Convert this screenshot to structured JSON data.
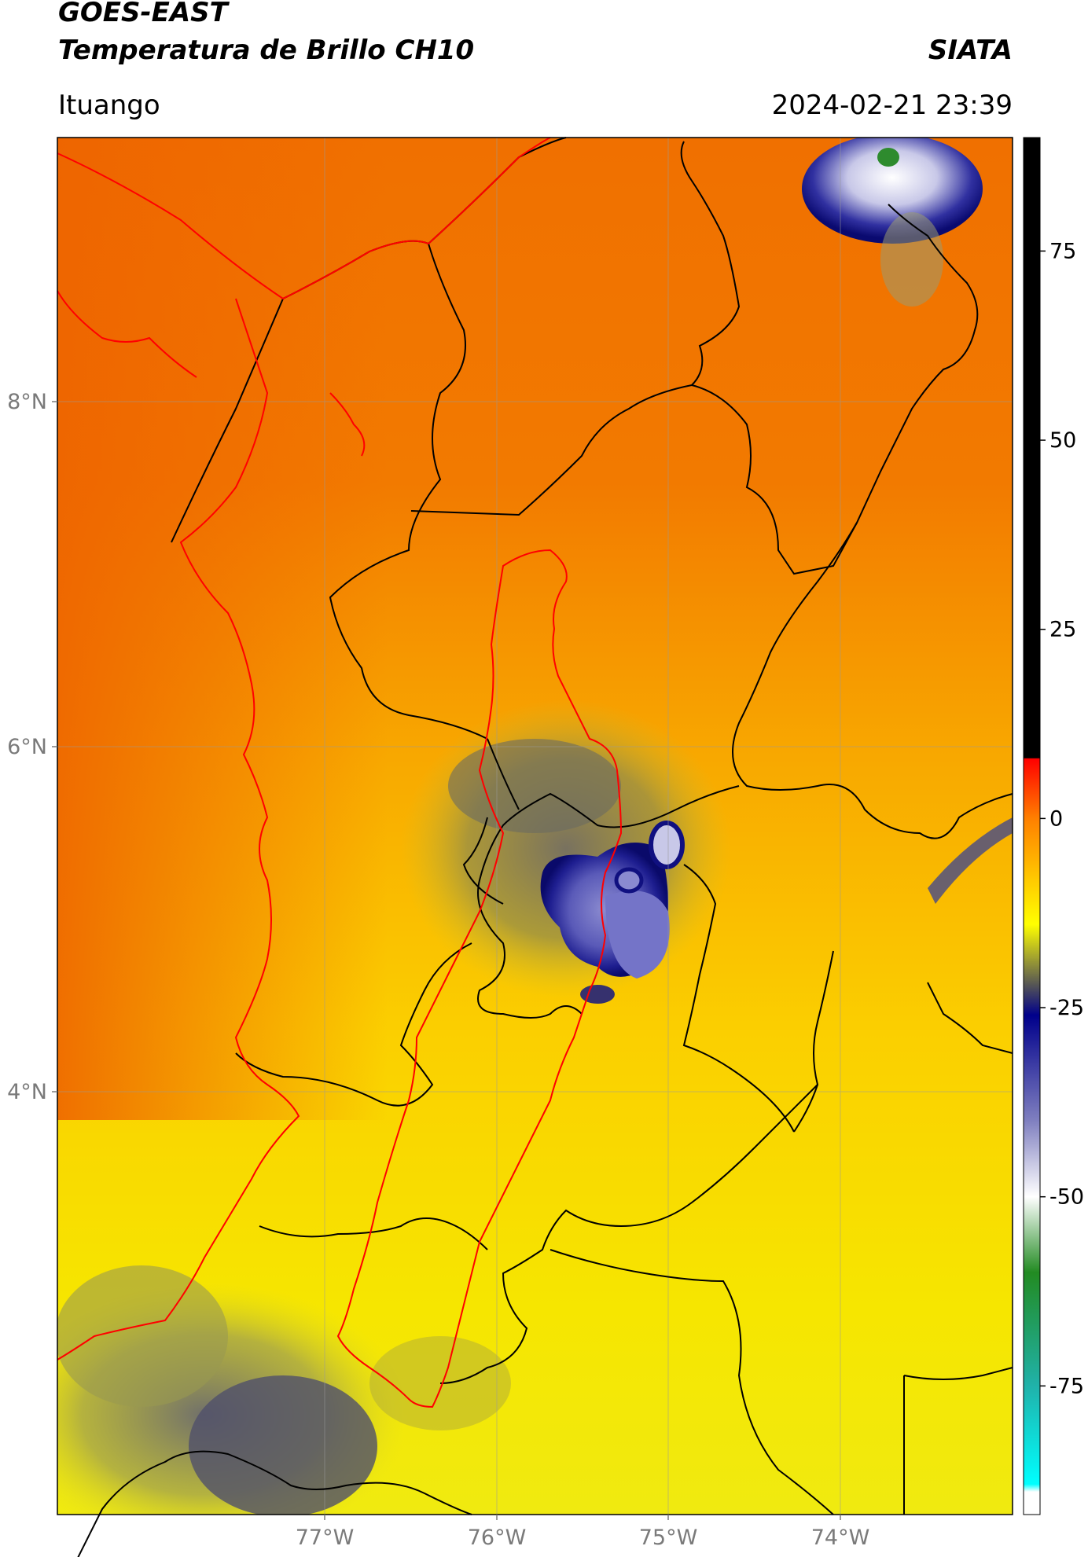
{
  "header": {
    "satellite": "GOES-EAST",
    "product": "Temperatura de Brillo CH10",
    "org": "SIATA",
    "region": "Ituango",
    "timestamp": "2024-02-21 23:39"
  },
  "axes": {
    "lat_labels": [
      "8°N",
      "6°N",
      "4°N"
    ],
    "lon_labels": [
      "77°W",
      "76°W",
      "75°W",
      "74°W"
    ]
  },
  "colorbar": {
    "ticks": [
      "75",
      "50",
      "25",
      "0",
      "-25",
      "-50",
      "-75"
    ],
    "stops": [
      {
        "value": 90,
        "color": "#000000"
      },
      {
        "value": 8,
        "color": "#000000"
      },
      {
        "value": 7.9,
        "color": "#ff0000"
      },
      {
        "value": 0,
        "color": "#ff8000"
      },
      {
        "value": -14,
        "color": "#ffff00"
      },
      {
        "value": -22,
        "color": "#555555"
      },
      {
        "value": -26,
        "color": "#00008b"
      },
      {
        "value": -40,
        "color": "#8080c0"
      },
      {
        "value": -50,
        "color": "#ffffff"
      },
      {
        "value": -60,
        "color": "#228b22"
      },
      {
        "value": -75,
        "color": "#20b2aa"
      },
      {
        "value": -88,
        "color": "#00ffff"
      },
      {
        "value": -89,
        "color": "#ffffff"
      },
      {
        "value": -92,
        "color": "#ffffff"
      }
    ]
  },
  "colors": {
    "border_black": "#000000",
    "basin_red": "#ff0000",
    "grid": "#9a9a9a"
  }
}
